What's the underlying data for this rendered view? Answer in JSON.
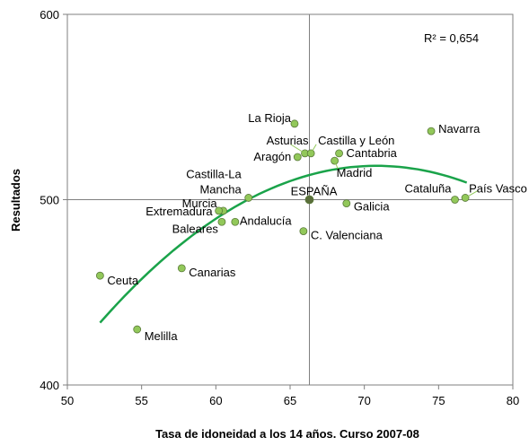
{
  "chart_data": {
    "type": "scatter",
    "title": "",
    "xlabel": "Tasa de idoneidad a los 14 años. Curso 2007-08",
    "ylabel": "Resultados",
    "xlim": [
      50,
      80
    ],
    "ylim": [
      400,
      600
    ],
    "x_ticks": [
      "50",
      "55",
      "60",
      "65",
      "70",
      "75",
      "80"
    ],
    "y_ticks": [
      "400",
      "500",
      "600"
    ],
    "reference_lines": {
      "x": 66.3,
      "y": 500
    },
    "r2_text": "R² = 0,654",
    "point_color": "#92c85a",
    "reference_point_color": "#5a6e3a",
    "trend_color": "#1aa34a",
    "trend_fit": {
      "type": "polynomial",
      "degree": 2,
      "x_range": [
        52.2,
        76.9
      ]
    },
    "points": [
      {
        "name": "La Rioja",
        "x": 65.3,
        "y": 541
      },
      {
        "name": "Navarra",
        "x": 74.5,
        "y": 537
      },
      {
        "name": "Asturias",
        "x": 66.0,
        "y": 525
      },
      {
        "name": "Castilla y León",
        "x": 66.4,
        "y": 525
      },
      {
        "name": "Cantabria",
        "x": 68.3,
        "y": 525
      },
      {
        "name": "Aragón",
        "x": 65.5,
        "y": 523
      },
      {
        "name": "Madrid",
        "x": 68.0,
        "y": 521
      },
      {
        "name": "Castilla-La Mancha",
        "x": 62.2,
        "y": 501
      },
      {
        "name": "ESPAÑA",
        "x": 66.3,
        "y": 500,
        "reference": true
      },
      {
        "name": "Cataluña",
        "x": 76.1,
        "y": 500
      },
      {
        "name": "País Vasco",
        "x": 76.8,
        "y": 501
      },
      {
        "name": "Galicia",
        "x": 68.8,
        "y": 498
      },
      {
        "name": "Murcia",
        "x": 60.5,
        "y": 494
      },
      {
        "name": "Extremadura",
        "x": 60.2,
        "y": 494
      },
      {
        "name": "Andalucía",
        "x": 61.3,
        "y": 488
      },
      {
        "name": "Baleares",
        "x": 60.4,
        "y": 488
      },
      {
        "name": "C. Valenciana",
        "x": 65.9,
        "y": 483
      },
      {
        "name": "Canarias",
        "x": 57.7,
        "y": 463
      },
      {
        "name": "Ceuta",
        "x": 52.2,
        "y": 459
      },
      {
        "name": "Melilla",
        "x": 54.7,
        "y": 430
      }
    ]
  }
}
